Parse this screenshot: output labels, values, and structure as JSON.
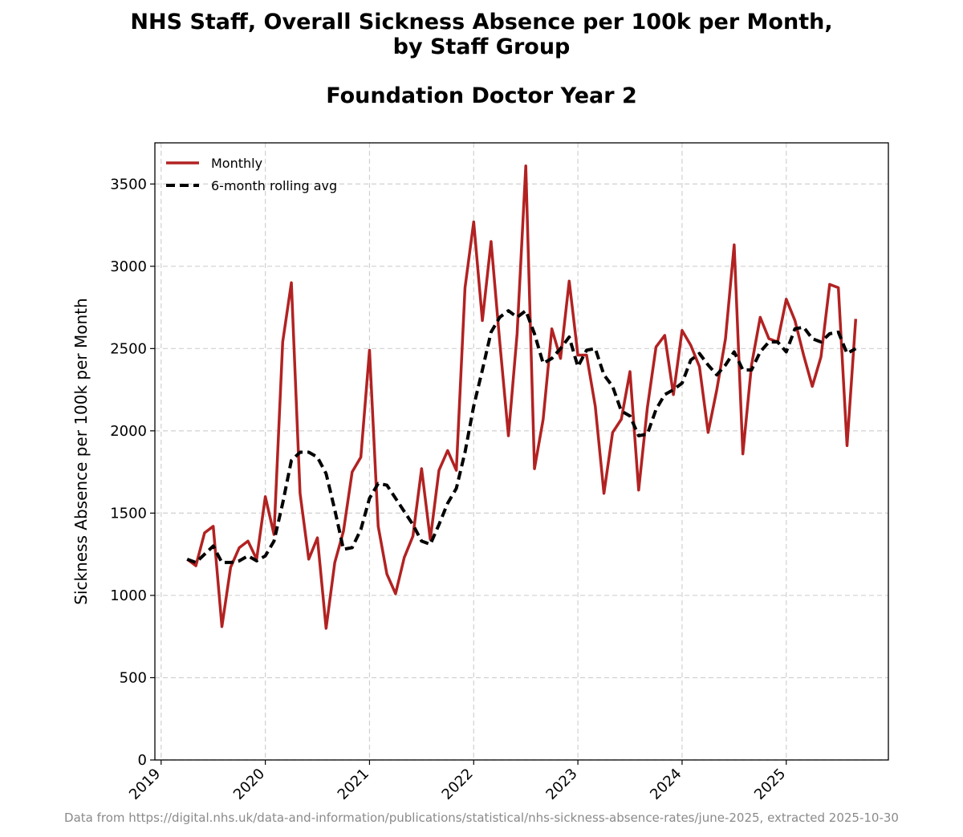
{
  "chart_data": {
    "type": "line",
    "title": "NHS Staff, Overall Sickness Absence per 100k per Month,",
    "title_line2": "by Staff Group",
    "subtitle": "Foundation Doctor Year 2",
    "xlabel": "",
    "ylabel": "Sickness Absence per 100k per Month",
    "xlim": [
      2018.94,
      2025.98
    ],
    "ylim": [
      0,
      3750
    ],
    "x_ticks": [
      "2019",
      "2020",
      "2021",
      "2022",
      "2023",
      "2024",
      "2025"
    ],
    "y_ticks": [
      0,
      500,
      1000,
      1500,
      2000,
      2500,
      3000,
      3500
    ],
    "grid": true,
    "legend_position": "top-left",
    "colors": {
      "monthly": "#b22222",
      "rolling": "#000000",
      "grid": "#d0d0d0",
      "source_text": "#8a8a8a"
    },
    "series": [
      {
        "name": "Monthly",
        "style": "solid",
        "start": "2019-04",
        "values": [
          1220,
          1180,
          1380,
          1420,
          810,
          1170,
          1290,
          1330,
          1220,
          1600,
          1370,
          2540,
          2900,
          1620,
          1220,
          1350,
          800,
          1200,
          1390,
          1750,
          1840,
          2490,
          1420,
          1130,
          1010,
          1230,
          1360,
          1770,
          1340,
          1760,
          1880,
          1760,
          2870,
          3270,
          2670,
          3150,
          2540,
          1970,
          2590,
          3610,
          1770,
          2070,
          2620,
          2440,
          2910,
          2460,
          2460,
          2150,
          1620,
          1990,
          2070,
          2360,
          1640,
          2140,
          2510,
          2580,
          2220,
          2610,
          2520,
          2390,
          1990,
          2250,
          2560,
          3130,
          1860,
          2400,
          2690,
          2560,
          2540,
          2800,
          2670,
          2460,
          2270,
          2450,
          2890,
          2870,
          1910,
          2680
        ]
      },
      {
        "name": "6-month rolling avg",
        "style": "dashed",
        "start": "2019-04",
        "values": [
          1220,
          1200,
          1250,
          1300,
          1200,
          1200,
          1210,
          1240,
          1210,
          1240,
          1330,
          1560,
          1820,
          1870,
          1870,
          1840,
          1740,
          1520,
          1280,
          1290,
          1400,
          1590,
          1680,
          1670,
          1590,
          1510,
          1430,
          1330,
          1310,
          1430,
          1560,
          1650,
          1870,
          2150,
          2370,
          2600,
          2690,
          2730,
          2690,
          2730,
          2590,
          2410,
          2440,
          2500,
          2570,
          2390,
          2490,
          2500,
          2340,
          2270,
          2120,
          2090,
          1970,
          1980,
          2130,
          2220,
          2250,
          2290,
          2430,
          2470,
          2400,
          2340,
          2400,
          2480,
          2370,
          2370,
          2480,
          2540,
          2540,
          2480,
          2620,
          2630,
          2560,
          2540,
          2590,
          2600,
          2470,
          2500
        ]
      }
    ]
  },
  "source_note": "Data from https://digital.nhs.uk/data-and-information/publications/statistical/nhs-sickness-absence-rates/june-2025, extracted 2025-10-30"
}
